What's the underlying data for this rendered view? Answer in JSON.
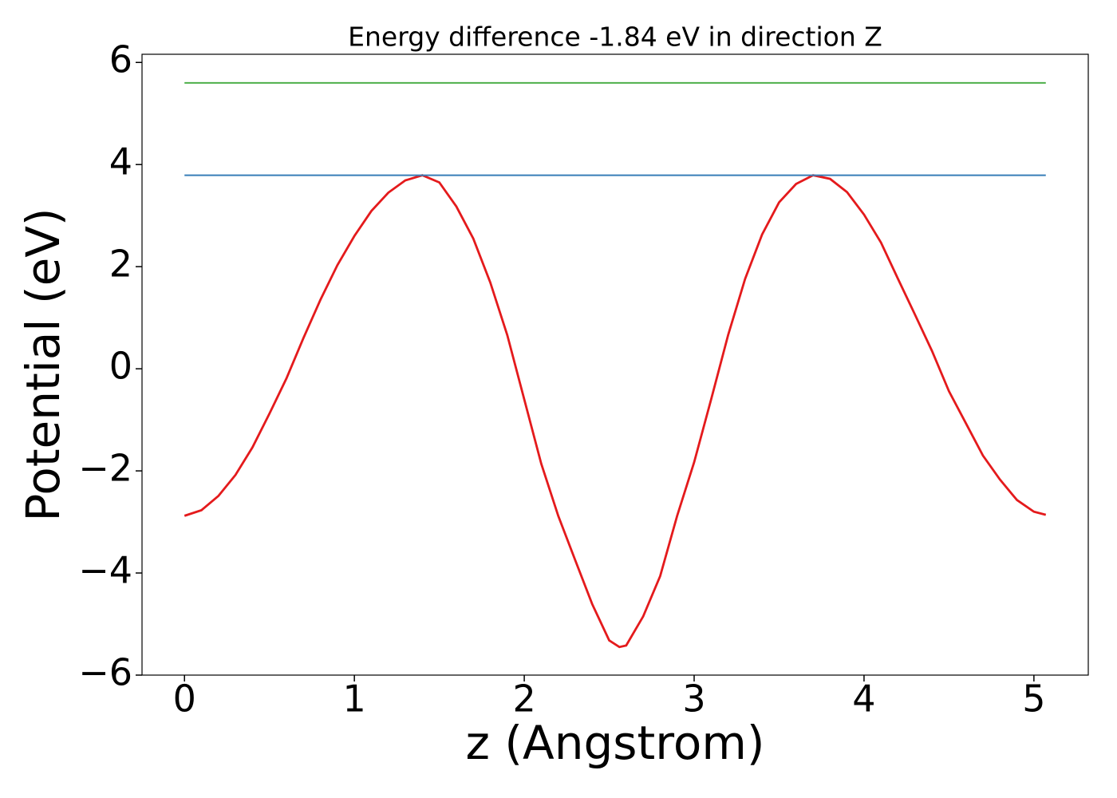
{
  "chart_data": {
    "type": "line",
    "title": "Energy difference -1.84 eV in direction Z",
    "x_label": "z (Angstrom)",
    "y_label": "Potential (eV)",
    "xlim": [
      -0.25,
      5.32
    ],
    "ylim": [
      -6.0,
      6.16
    ],
    "xticks": [
      0,
      1,
      2,
      3,
      4,
      5
    ],
    "yticks": [
      -6,
      -4,
      -2,
      0,
      2,
      4,
      6
    ],
    "series": [
      {
        "color": "#e41a1c",
        "x": [
          0,
          0.1,
          0.2,
          0.3,
          0.4,
          0.5,
          0.6,
          0.7,
          0.8,
          0.9,
          1.0,
          1.1,
          1.2,
          1.3,
          1.4,
          1.5,
          1.6,
          1.7,
          1.8,
          1.9,
          2.0,
          2.1,
          2.2,
          2.3,
          2.4,
          2.5,
          2.56,
          2.6,
          2.7,
          2.8,
          2.9,
          3.0,
          3.1,
          3.2,
          3.3,
          3.4,
          3.5,
          3.6,
          3.7,
          3.8,
          3.9,
          4.0,
          4.1,
          4.2,
          4.3,
          4.4,
          4.5,
          4.6,
          4.7,
          4.8,
          4.9,
          5.0,
          5.07
        ],
        "values": [
          -2.88,
          -2.77,
          -2.49,
          -2.08,
          -1.54,
          -0.88,
          -0.19,
          0.6,
          1.35,
          2.03,
          2.6,
          3.09,
          3.45,
          3.69,
          3.79,
          3.65,
          3.18,
          2.55,
          1.69,
          0.66,
          -0.6,
          -1.86,
          -2.88,
          -3.75,
          -4.61,
          -5.32,
          -5.45,
          -5.42,
          -4.85,
          -4.06,
          -2.88,
          -1.83,
          -0.6,
          0.66,
          1.76,
          2.63,
          3.26,
          3.62,
          3.79,
          3.72,
          3.46,
          3.02,
          2.47,
          1.76,
          1.06,
          0.35,
          -0.44,
          -1.07,
          -1.7,
          -2.17,
          -2.57,
          -2.8,
          -2.86
        ]
      },
      {
        "color": "#377eb8",
        "x": [
          0,
          5.07
        ],
        "values": [
          3.79,
          3.79
        ]
      },
      {
        "color": "#4daf4a",
        "x": [
          0,
          5.07
        ],
        "values": [
          5.6,
          5.6
        ]
      }
    ]
  }
}
